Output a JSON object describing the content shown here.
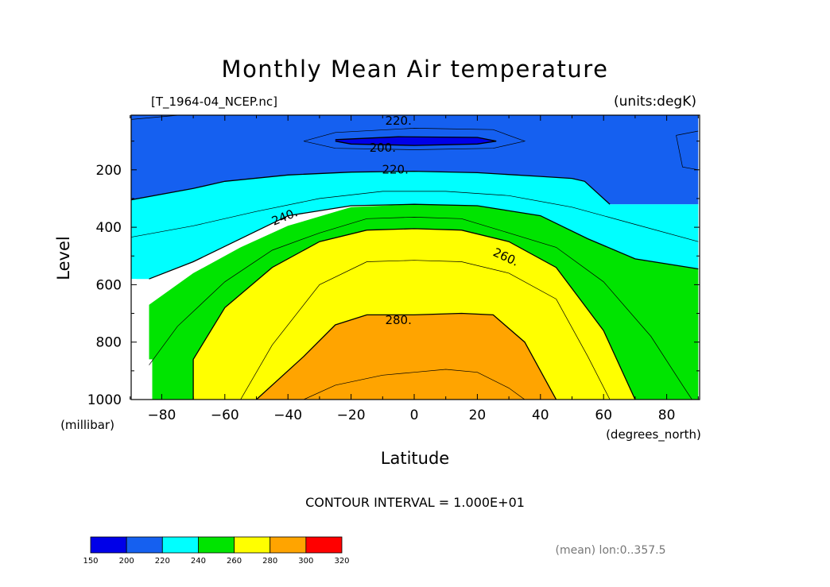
{
  "chart_data": {
    "type": "contour",
    "title": "Monthly Mean Air temperature",
    "subtitle_left": "[T_1964-04_NCEP.nc]",
    "subtitle_right": "(units:degK)",
    "xlabel": "Latitude",
    "ylabel": "Level",
    "x_units": "(degrees_north)",
    "y_units": "(millibar)",
    "xlim": [
      -90,
      90
    ],
    "ylim": [
      1000,
      10
    ],
    "x_ticks": [
      -80,
      -60,
      -40,
      -20,
      0,
      20,
      40,
      60,
      80
    ],
    "y_ticks": [
      200,
      400,
      600,
      800,
      1000
    ],
    "contour_interval_text": "CONTOUR INTERVAL = 1.000E+01",
    "footer_text": "(mean) lon:0..357.5",
    "contour_labels": [
      {
        "text": "220.",
        "lat": -5,
        "level": 30,
        "angle": 0
      },
      {
        "text": "200.",
        "lat": -10,
        "level": 125,
        "angle": 0
      },
      {
        "text": "220.",
        "lat": -6,
        "level": 200,
        "angle": 0
      },
      {
        "text": "240.",
        "lat": -41,
        "level": 365,
        "angle": -22
      },
      {
        "text": "260.",
        "lat": 29,
        "level": 505,
        "angle": 25
      },
      {
        "text": "280.",
        "lat": -5,
        "level": 725,
        "angle": 0
      }
    ],
    "bands": [
      {
        "range": [
          200,
          220
        ],
        "color": "#1560f0",
        "boundary": [
          [
            -90,
            0
          ],
          [
            90,
            0
          ],
          [
            90,
            320
          ],
          [
            62,
            320
          ],
          [
            54,
            240
          ],
          [
            50,
            230
          ],
          [
            40,
            223
          ],
          [
            20,
            210
          ],
          [
            0,
            205
          ],
          [
            -20,
            208
          ],
          [
            -40,
            218
          ],
          [
            -60,
            240
          ],
          [
            -70,
            265
          ],
          [
            -90,
            305
          ]
        ]
      },
      {
        "range": [
          220,
          240
        ],
        "color": "#00ffff",
        "boundary": [
          [
            -90,
            305
          ],
          [
            -70,
            265
          ],
          [
            -60,
            240
          ],
          [
            -40,
            218
          ],
          [
            -20,
            208
          ],
          [
            0,
            205
          ],
          [
            20,
            210
          ],
          [
            40,
            223
          ],
          [
            50,
            230
          ],
          [
            54,
            240
          ],
          [
            62,
            320
          ],
          [
            90,
            320
          ],
          [
            90,
            545
          ],
          [
            70,
            510
          ],
          [
            55,
            440
          ],
          [
            40,
            360
          ],
          [
            20,
            325
          ],
          [
            0,
            320
          ],
          [
            -20,
            325
          ],
          [
            -40,
            360
          ],
          [
            -55,
            440
          ],
          [
            -70,
            520
          ],
          [
            -84,
            580
          ],
          [
            -90,
            580
          ]
        ]
      },
      {
        "range": [
          240,
          260
        ],
        "color": "#00e400",
        "boundary": [
          [
            -90,
            1000
          ],
          [
            -84,
            1000
          ],
          [
            -84,
            670
          ],
          [
            -70,
            560
          ],
          [
            -55,
            470
          ],
          [
            -40,
            395
          ],
          [
            -20,
            330
          ],
          [
            0,
            320
          ],
          [
            20,
            325
          ],
          [
            40,
            360
          ],
          [
            55,
            440
          ],
          [
            70,
            510
          ],
          [
            90,
            545
          ],
          [
            90,
            1000
          ]
        ]
      },
      {
        "range": [
          260,
          280
        ],
        "color": "#ffff00",
        "boundary": [
          [
            -70,
            1000
          ],
          [
            -70,
            860
          ],
          [
            -60,
            680
          ],
          [
            -45,
            540
          ],
          [
            -30,
            450
          ],
          [
            -15,
            410
          ],
          [
            0,
            405
          ],
          [
            15,
            410
          ],
          [
            30,
            450
          ],
          [
            45,
            540
          ],
          [
            60,
            760
          ],
          [
            70,
            1000
          ]
        ]
      },
      {
        "range": [
          280,
          300
        ],
        "color": "#ffa400",
        "boundary": [
          [
            -50,
            1000
          ],
          [
            -35,
            850
          ],
          [
            -25,
            740
          ],
          [
            -15,
            705
          ],
          [
            0,
            705
          ],
          [
            15,
            700
          ],
          [
            25,
            705
          ],
          [
            35,
            800
          ],
          [
            45,
            1000
          ]
        ]
      },
      {
        "range": [
          150,
          200
        ],
        "color": "#0000e8",
        "boundary": [
          [
            -25,
            95
          ],
          [
            -5,
            85
          ],
          [
            20,
            87
          ],
          [
            26,
            100
          ],
          [
            20,
            110
          ],
          [
            0,
            115
          ],
          [
            -20,
            110
          ],
          [
            -25,
            100
          ]
        ]
      }
    ],
    "thin_contours": [
      [
        [
          -90,
          25
        ],
        [
          -75,
          10
        ]
      ],
      [
        [
          -35,
          100
        ],
        [
          -25,
          70
        ],
        [
          0,
          55
        ],
        [
          25,
          60
        ],
        [
          35,
          100
        ],
        [
          25,
          125
        ],
        [
          0,
          130
        ],
        [
          -25,
          125
        ],
        [
          -35,
          100
        ]
      ],
      [
        [
          -90,
          435
        ],
        [
          -70,
          395
        ],
        [
          -50,
          345
        ],
        [
          -30,
          300
        ],
        [
          -10,
          275
        ],
        [
          10,
          275
        ],
        [
          30,
          290
        ],
        [
          50,
          330
        ],
        [
          70,
          390
        ],
        [
          90,
          450
        ]
      ],
      [
        [
          -84,
          880
        ],
        [
          -75,
          745
        ],
        [
          -60,
          590
        ],
        [
          -45,
          480
        ],
        [
          -30,
          420
        ],
        [
          -15,
          370
        ],
        [
          0,
          365
        ],
        [
          15,
          370
        ],
        [
          30,
          420
        ],
        [
          45,
          470
        ],
        [
          60,
          590
        ],
        [
          75,
          780
        ],
        [
          85,
          950
        ],
        [
          88,
          1000
        ]
      ],
      [
        [
          -55,
          1000
        ],
        [
          -45,
          810
        ],
        [
          -30,
          600
        ],
        [
          -15,
          520
        ],
        [
          0,
          515
        ],
        [
          15,
          520
        ],
        [
          30,
          560
        ],
        [
          45,
          650
        ],
        [
          55,
          850
        ],
        [
          62,
          1000
        ]
      ],
      [
        [
          -35,
          1000
        ],
        [
          -25,
          950
        ],
        [
          -10,
          915
        ],
        [
          0,
          905
        ],
        [
          10,
          895
        ],
        [
          20,
          905
        ],
        [
          30,
          960
        ],
        [
          35,
          1000
        ]
      ],
      [
        [
          83,
          80
        ],
        [
          90,
          65
        ]
      ],
      [
        [
          83,
          80
        ],
        [
          85,
          190
        ],
        [
          90,
          200
        ]
      ]
    ],
    "thick_contours": [
      [
        [
          -90,
          305
        ],
        [
          -70,
          265
        ],
        [
          -60,
          240
        ],
        [
          -40,
          218
        ],
        [
          -20,
          208
        ],
        [
          0,
          205
        ],
        [
          20,
          210
        ],
        [
          40,
          223
        ],
        [
          50,
          230
        ],
        [
          54,
          240
        ],
        [
          62,
          320
        ]
      ],
      [
        [
          -84,
          580
        ],
        [
          -70,
          520
        ],
        [
          -55,
          440
        ],
        [
          -40,
          360
        ],
        [
          -20,
          325
        ],
        [
          0,
          320
        ],
        [
          20,
          325
        ],
        [
          40,
          360
        ],
        [
          55,
          440
        ],
        [
          70,
          510
        ],
        [
          90,
          545
        ]
      ],
      [
        [
          -70,
          1000
        ],
        [
          -70,
          860
        ],
        [
          -60,
          680
        ],
        [
          -45,
          540
        ],
        [
          -30,
          450
        ],
        [
          -15,
          410
        ],
        [
          0,
          405
        ],
        [
          15,
          410
        ],
        [
          30,
          450
        ],
        [
          45,
          540
        ],
        [
          60,
          760
        ],
        [
          70,
          1000
        ]
      ],
      [
        [
          -50,
          1000
        ],
        [
          -35,
          850
        ],
        [
          -25,
          740
        ],
        [
          -15,
          705
        ],
        [
          0,
          705
        ],
        [
          15,
          700
        ],
        [
          25,
          705
        ],
        [
          35,
          800
        ],
        [
          45,
          1000
        ]
      ],
      [
        [
          -25,
          95
        ],
        [
          -5,
          85
        ],
        [
          20,
          87
        ],
        [
          26,
          100
        ],
        [
          20,
          110
        ],
        [
          0,
          115
        ],
        [
          -20,
          110
        ],
        [
          -25,
          100
        ]
      ]
    ],
    "missing_regions": [
      [
        [
          -90,
          580
        ],
        [
          -88,
          580
        ],
        [
          -88,
          680
        ],
        [
          -86,
          680
        ],
        [
          -86,
          760
        ],
        [
          -84,
          760
        ],
        [
          -84,
          860
        ],
        [
          -83,
          860
        ],
        [
          -83,
          1000
        ],
        [
          -90,
          1000
        ]
      ]
    ],
    "colorbar": {
      "levels": [
        150,
        200,
        220,
        240,
        260,
        280,
        300,
        320
      ],
      "colors": [
        "#0000e8",
        "#1560f0",
        "#00ffff",
        "#00e400",
        "#ffff00",
        "#ffa400",
        "#ff0000"
      ]
    }
  }
}
